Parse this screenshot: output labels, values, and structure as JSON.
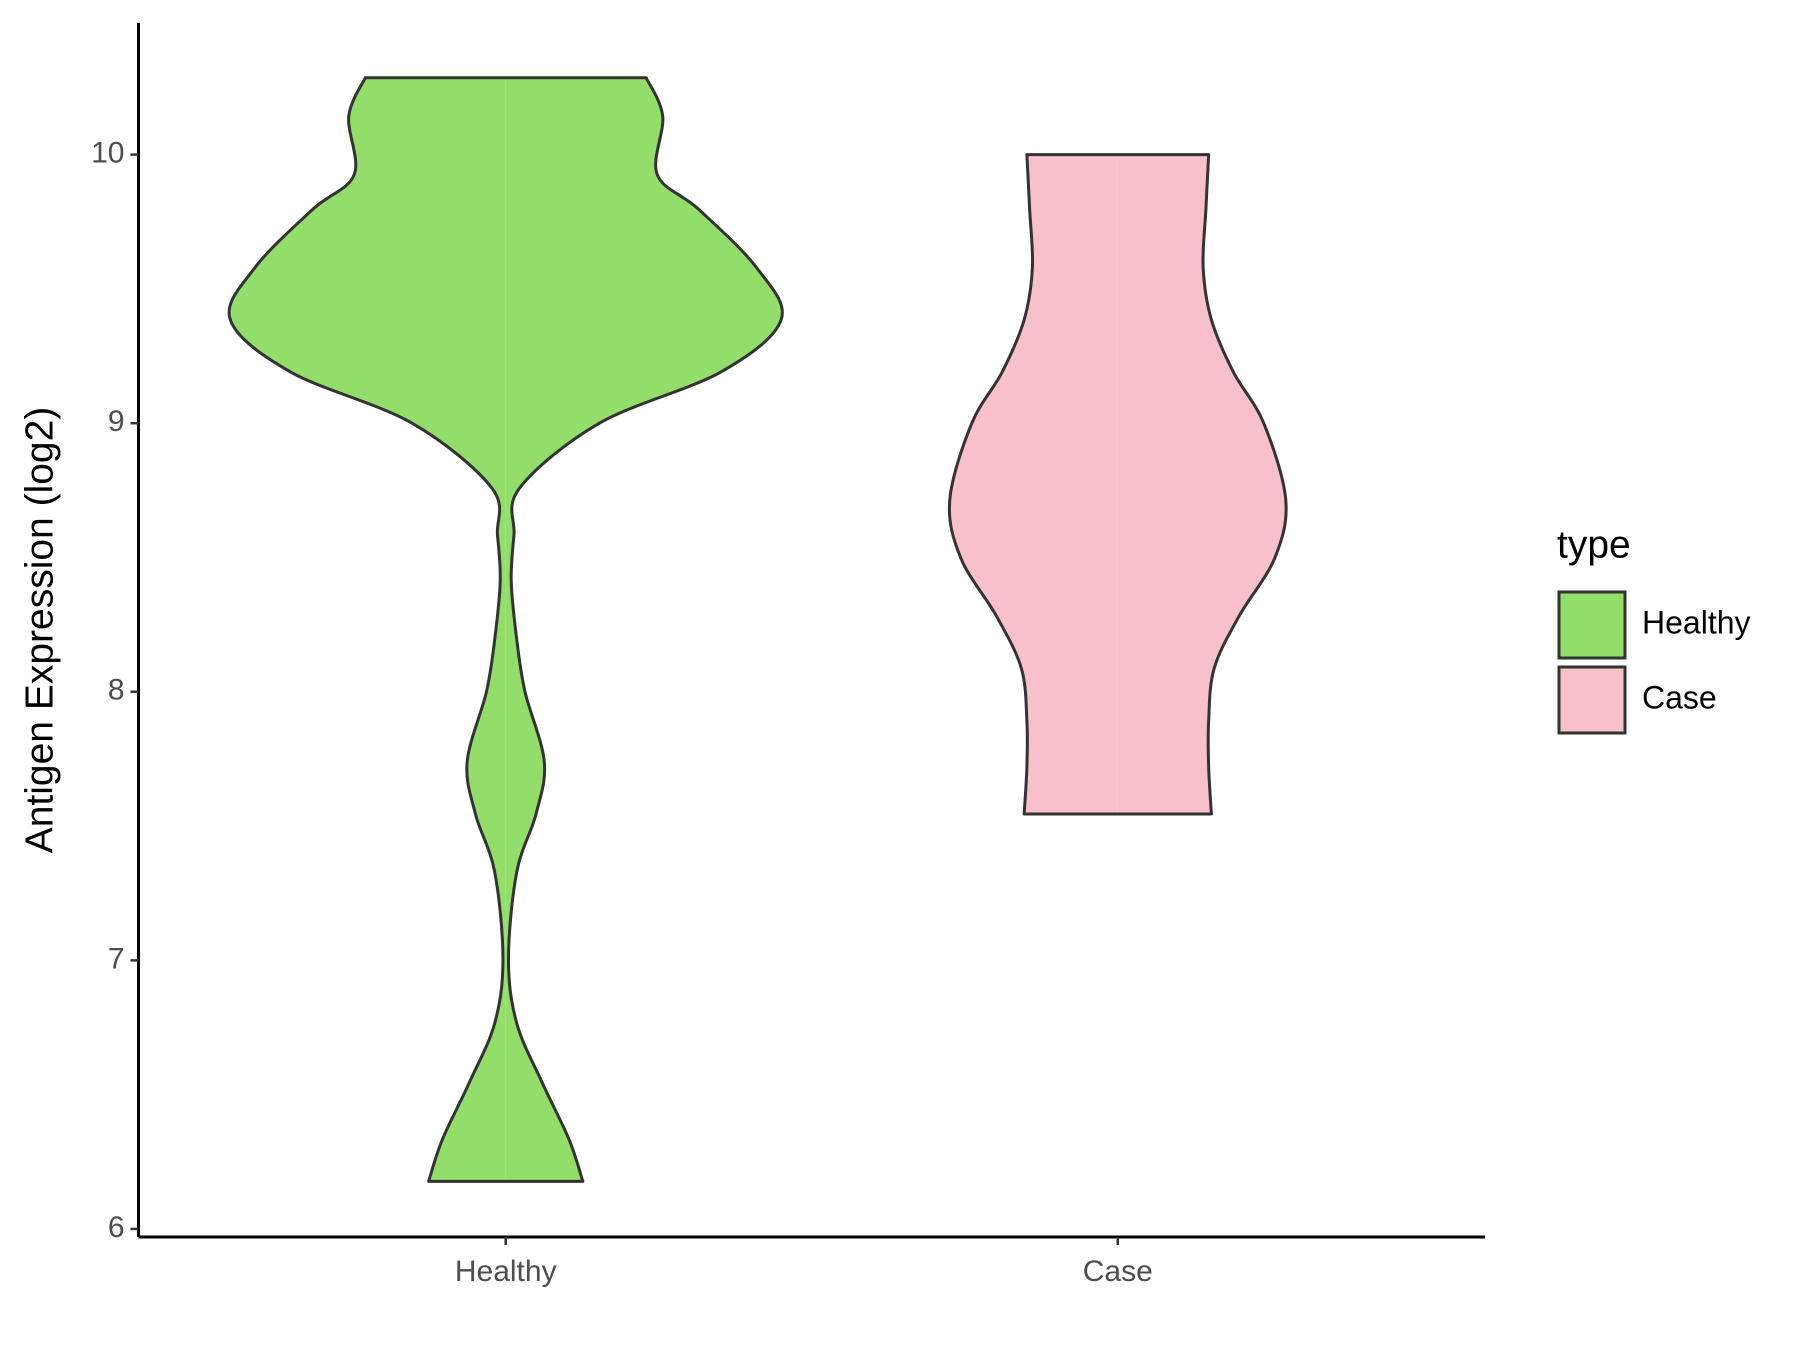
{
  "chart_data": {
    "type": "violin",
    "y_label": "Antigen Expression (log2)",
    "categories": [
      "Healthy",
      "Case"
    ],
    "legend_title": "type",
    "legend": "right",
    "ylim": [
      5.97,
      10.49
    ],
    "yticks": [
      6,
      7,
      8,
      9,
      10
    ],
    "series": [
      {
        "name": "Healthy",
        "color": "#93dd6a",
        "y": [
          10.286,
          10.143,
          9.926,
          9.797,
          9.58,
          9.385,
          9.19,
          9.0,
          8.758,
          8.584,
          8.411,
          8.195,
          8.0,
          7.74,
          7.545,
          7.329,
          7.004,
          6.766,
          6.55,
          6.333,
          6.177
        ],
        "density": [
          0.51,
          0.57,
          0.55,
          0.7,
          0.91,
          1.0,
          0.78,
          0.34,
          0.05,
          0.03,
          0.02,
          0.04,
          0.07,
          0.14,
          0.11,
          0.04,
          0.01,
          0.04,
          0.13,
          0.23,
          0.28
        ]
      },
      {
        "name": "Case",
        "color": "#f7c0cb",
        "y": [
          10.0,
          9.797,
          9.58,
          9.385,
          9.19,
          9.0,
          8.714,
          8.498,
          8.281,
          8.087,
          7.892,
          7.719,
          7.545
        ],
        "density": [
          0.33,
          0.32,
          0.31,
          0.34,
          0.42,
          0.53,
          0.61,
          0.57,
          0.44,
          0.35,
          0.33,
          0.33,
          0.34
        ]
      }
    ]
  }
}
